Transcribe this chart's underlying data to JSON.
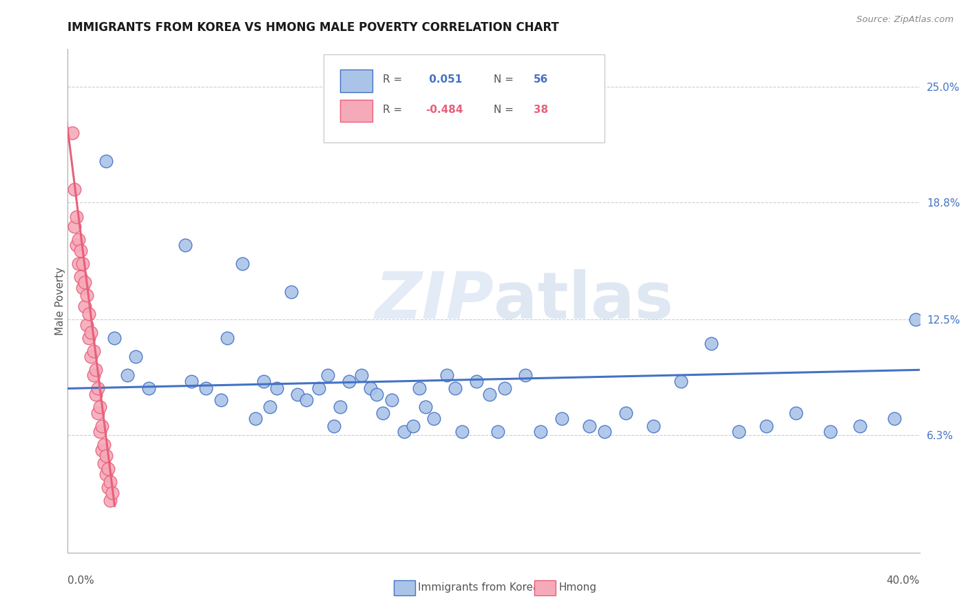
{
  "title": "IMMIGRANTS FROM KOREA VS HMONG MALE POVERTY CORRELATION CHART",
  "source": "Source: ZipAtlas.com",
  "ylabel": "Male Poverty",
  "right_yticks": [
    "25.0%",
    "18.8%",
    "12.5%",
    "6.3%"
  ],
  "right_ytick_vals": [
    0.25,
    0.188,
    0.125,
    0.063
  ],
  "xlim": [
    0.0,
    0.4
  ],
  "ylim": [
    0.0,
    0.27
  ],
  "legend_korea_R": " 0.051",
  "legend_korea_N": "56",
  "legend_hmong_R": "-0.484",
  "legend_hmong_N": "38",
  "korea_color": "#aac4e8",
  "hmong_color": "#f5aaba",
  "korea_line_color": "#4472c4",
  "hmong_line_color": "#e8607a",
  "watermark_color": "#dce8f5",
  "korea_x": [
    0.018,
    0.022,
    0.028,
    0.032,
    0.038,
    0.055,
    0.058,
    0.065,
    0.072,
    0.075,
    0.082,
    0.088,
    0.092,
    0.095,
    0.098,
    0.105,
    0.108,
    0.112,
    0.118,
    0.122,
    0.125,
    0.128,
    0.132,
    0.138,
    0.142,
    0.145,
    0.148,
    0.152,
    0.158,
    0.162,
    0.165,
    0.168,
    0.172,
    0.178,
    0.182,
    0.185,
    0.192,
    0.198,
    0.202,
    0.205,
    0.215,
    0.222,
    0.232,
    0.245,
    0.252,
    0.262,
    0.275,
    0.288,
    0.302,
    0.315,
    0.328,
    0.342,
    0.358,
    0.372,
    0.388,
    0.398
  ],
  "korea_y": [
    0.21,
    0.115,
    0.095,
    0.105,
    0.088,
    0.165,
    0.092,
    0.088,
    0.082,
    0.115,
    0.155,
    0.072,
    0.092,
    0.078,
    0.088,
    0.14,
    0.085,
    0.082,
    0.088,
    0.095,
    0.068,
    0.078,
    0.092,
    0.095,
    0.088,
    0.085,
    0.075,
    0.082,
    0.065,
    0.068,
    0.088,
    0.078,
    0.072,
    0.095,
    0.088,
    0.065,
    0.092,
    0.085,
    0.065,
    0.088,
    0.095,
    0.065,
    0.072,
    0.068,
    0.065,
    0.075,
    0.068,
    0.092,
    0.112,
    0.065,
    0.068,
    0.075,
    0.065,
    0.068,
    0.072,
    0.125
  ],
  "hmong_x": [
    0.002,
    0.003,
    0.003,
    0.004,
    0.004,
    0.005,
    0.005,
    0.006,
    0.006,
    0.007,
    0.007,
    0.008,
    0.008,
    0.009,
    0.009,
    0.01,
    0.01,
    0.011,
    0.011,
    0.012,
    0.012,
    0.013,
    0.013,
    0.014,
    0.014,
    0.015,
    0.015,
    0.016,
    0.016,
    0.017,
    0.017,
    0.018,
    0.018,
    0.019,
    0.019,
    0.02,
    0.02,
    0.021
  ],
  "hmong_y": [
    0.225,
    0.195,
    0.175,
    0.18,
    0.165,
    0.168,
    0.155,
    0.162,
    0.148,
    0.155,
    0.142,
    0.145,
    0.132,
    0.138,
    0.122,
    0.128,
    0.115,
    0.118,
    0.105,
    0.108,
    0.095,
    0.098,
    0.085,
    0.088,
    0.075,
    0.078,
    0.065,
    0.068,
    0.055,
    0.058,
    0.048,
    0.052,
    0.042,
    0.045,
    0.035,
    0.038,
    0.028,
    0.032
  ],
  "korea_line_x": [
    0.0,
    0.4
  ],
  "korea_line_y_start": 0.088,
  "korea_line_y_end": 0.098,
  "hmong_line_x_start": -0.002,
  "hmong_line_x_end": 0.022,
  "hmong_line_y_start": 0.245,
  "hmong_line_y_end": 0.025
}
